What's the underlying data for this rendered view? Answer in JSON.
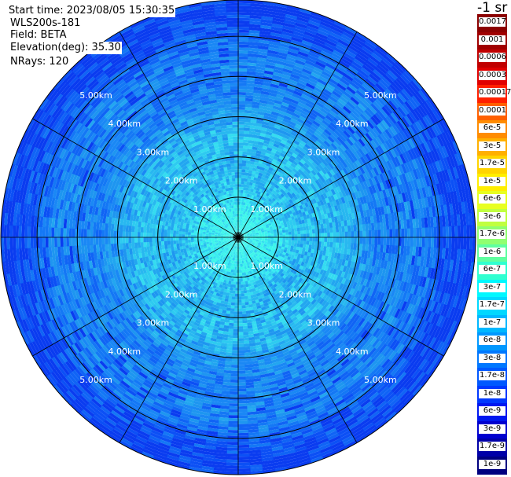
{
  "info": {
    "start_time": "Start time: 2023/08/05 15:30:35",
    "instrument": "WLS200s-181",
    "field": "Field: BETA",
    "elevation": "Elevation(deg): 35.30",
    "nrays": "NRays: 120"
  },
  "colorbar": {
    "units": "-1 sr",
    "labels": [
      "0.0017",
      "0.001",
      "0.0006",
      "0.0003",
      "0.00017",
      "0.0001",
      "6e-5",
      "3e-5",
      "1.7e-5",
      "1e-5",
      "6e-6",
      "3e-6",
      "1.7e-6",
      "1e-6",
      "6e-7",
      "3e-7",
      "1.7e-7",
      "1e-7",
      "6e-8",
      "3e-8",
      "1.7e-8",
      "1e-8",
      "6e-9",
      "3e-9",
      "1.7e-9",
      "1e-9"
    ],
    "colors": [
      "#8b0000",
      "#a00000",
      "#c00000",
      "#e00000",
      "#ff2000",
      "#ff6000",
      "#ff8c00",
      "#ffb000",
      "#ffd400",
      "#ffee00",
      "#e8ff20",
      "#c0ff40",
      "#90ff70",
      "#60ffa0",
      "#30ffd0",
      "#00f8ff",
      "#00d8ff",
      "#00b8ff",
      "#0098ff",
      "#0078ff",
      "#0058ff",
      "#0038ff",
      "#0018f0",
      "#0000d0",
      "#0000a8",
      "#000080"
    ]
  },
  "chart_data": {
    "type": "polar_ppi",
    "field": "BETA",
    "units": "-1 sr",
    "nrays": 120,
    "elevation_deg": 35.3,
    "range_rings_km": [
      1,
      2,
      3,
      4,
      5
    ],
    "range_ring_labels": [
      "1.00km",
      "2.00km",
      "3.00km",
      "4.00km",
      "5.00km"
    ],
    "max_range_km": 5.9,
    "azimuth_spokes_deg": [
      0,
      30,
      60,
      90,
      120,
      150,
      180,
      210,
      240,
      270,
      300,
      330
    ],
    "colorbar_scale": "log",
    "colorbar_range": [
      1e-09,
      0.0017
    ],
    "dominant_values": "mostly 3e-8 to 3e-7 (blue to cyan), highest near center"
  }
}
